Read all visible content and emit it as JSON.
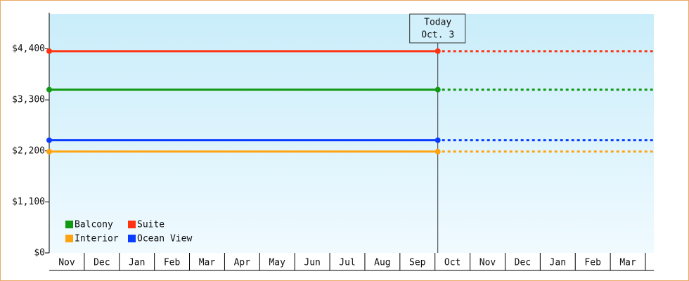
{
  "chart_data": {
    "type": "line",
    "categories": [
      "Nov",
      "Dec",
      "Jan",
      "Feb",
      "Mar",
      "Apr",
      "May",
      "Jun",
      "Jul",
      "Aug",
      "Sep",
      "Oct",
      "Nov",
      "Dec",
      "Jan",
      "Feb",
      "Mar"
    ],
    "series": [
      {
        "name": "Balcony",
        "color": "#119911",
        "value": 3520
      },
      {
        "name": "Suite",
        "color": "#ff3311",
        "value": 4350
      },
      {
        "name": "Interior",
        "color": "#ffa411",
        "value": 2185
      },
      {
        "name": "Ocean View",
        "color": "#0a3cff",
        "value": 2430
      }
    ],
    "ylim": [
      0,
      5150
    ],
    "yticks": [
      {
        "value": 0,
        "label": "$0"
      },
      {
        "value": 1100,
        "label": "$1,100"
      },
      {
        "value": 2200,
        "label": "$2,200"
      },
      {
        "value": 3300,
        "label": "$3,300"
      },
      {
        "value": 4400,
        "label": "$4,400"
      }
    ],
    "annotation": {
      "title": "Today",
      "date": "Oct. 3"
    },
    "legend": "bottom-left"
  }
}
